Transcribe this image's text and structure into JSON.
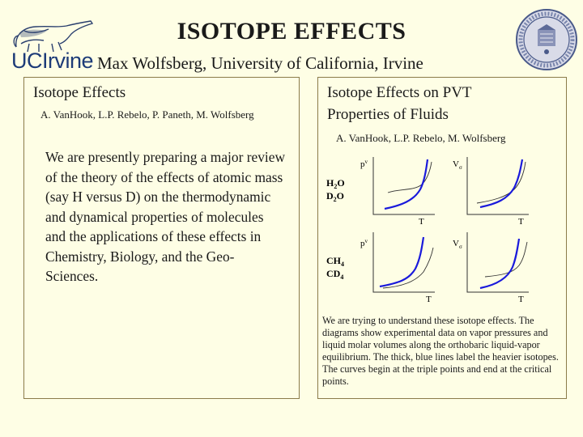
{
  "header": {
    "title": "ISOTOPE EFFECTS",
    "subtitle": "Max Wolfsberg, University of California, Irvine",
    "logo_text": "UCIrvine",
    "colors": {
      "background": "#fefee5",
      "text": "#1a1a1a",
      "logo": "#1d3b78",
      "curve_heavy": "#1a1adb",
      "curve_light": "#333333"
    }
  },
  "left_panel": {
    "title": "Isotope Effects",
    "authors": "A. VanHook, L.P. Rebelo, P. Paneth, M. Wolfsberg",
    "body": "We are presently preparing a major review of the theory of the effects of atomic mass (say H versus D) on the thermodynamic and dynamical properties of molecules and the applications of these effects in Chemistry, Biology, and the Geo-Sciences."
  },
  "right_panel": {
    "title_line1": "Isotope Effects on PVT",
    "title_line2": "Properties of Fluids",
    "authors": "A. VanHook, L.P. Rebelo, M. Wolfsberg",
    "caption": "We are trying to understand these isotope effects. The diagrams show experimental data on vapor pressures and liquid molar volumes along the orthobaric liquid-vapor equilibrium.  The thick, blue lines label the heavier isotopes.  The curves begin at the triple points and end at the critical points.",
    "rows": [
      {
        "light_molecule": [
          "H",
          "2",
          "O"
        ],
        "heavy_molecule": [
          "D",
          "2",
          "O"
        ]
      },
      {
        "light_molecule": [
          "CH",
          "4",
          ""
        ],
        "heavy_molecule": [
          "CD",
          "4",
          ""
        ]
      }
    ],
    "pressure_label": "p",
    "pressure_superscript": "v",
    "volume_label": "V",
    "volume_subscript": "σ",
    "x_label": "T"
  },
  "chart_data": {
    "type": "line",
    "title": "Isotope Effects on PVT Properties of Fluids",
    "xlabel": "T",
    "panels": [
      {
        "molecules": "H2O / D2O",
        "ylabel": "pv",
        "series": [
          {
            "name": "light isotope",
            "style": "thin"
          },
          {
            "name": "heavy isotope",
            "style": "thick blue"
          }
        ]
      },
      {
        "molecules": "H2O / D2O",
        "ylabel": "Vσ",
        "series": [
          {
            "name": "light isotope",
            "style": "thin"
          },
          {
            "name": "heavy isotope",
            "style": "thick blue"
          }
        ]
      },
      {
        "molecules": "CH4 / CD4",
        "ylabel": "pv",
        "series": [
          {
            "name": "light isotope",
            "style": "thin"
          },
          {
            "name": "heavy isotope",
            "style": "thick blue"
          }
        ]
      },
      {
        "molecules": "CH4 / CD4",
        "ylabel": "Vσ",
        "series": [
          {
            "name": "light isotope",
            "style": "thin"
          },
          {
            "name": "heavy isotope",
            "style": "thick blue"
          }
        ]
      }
    ]
  }
}
